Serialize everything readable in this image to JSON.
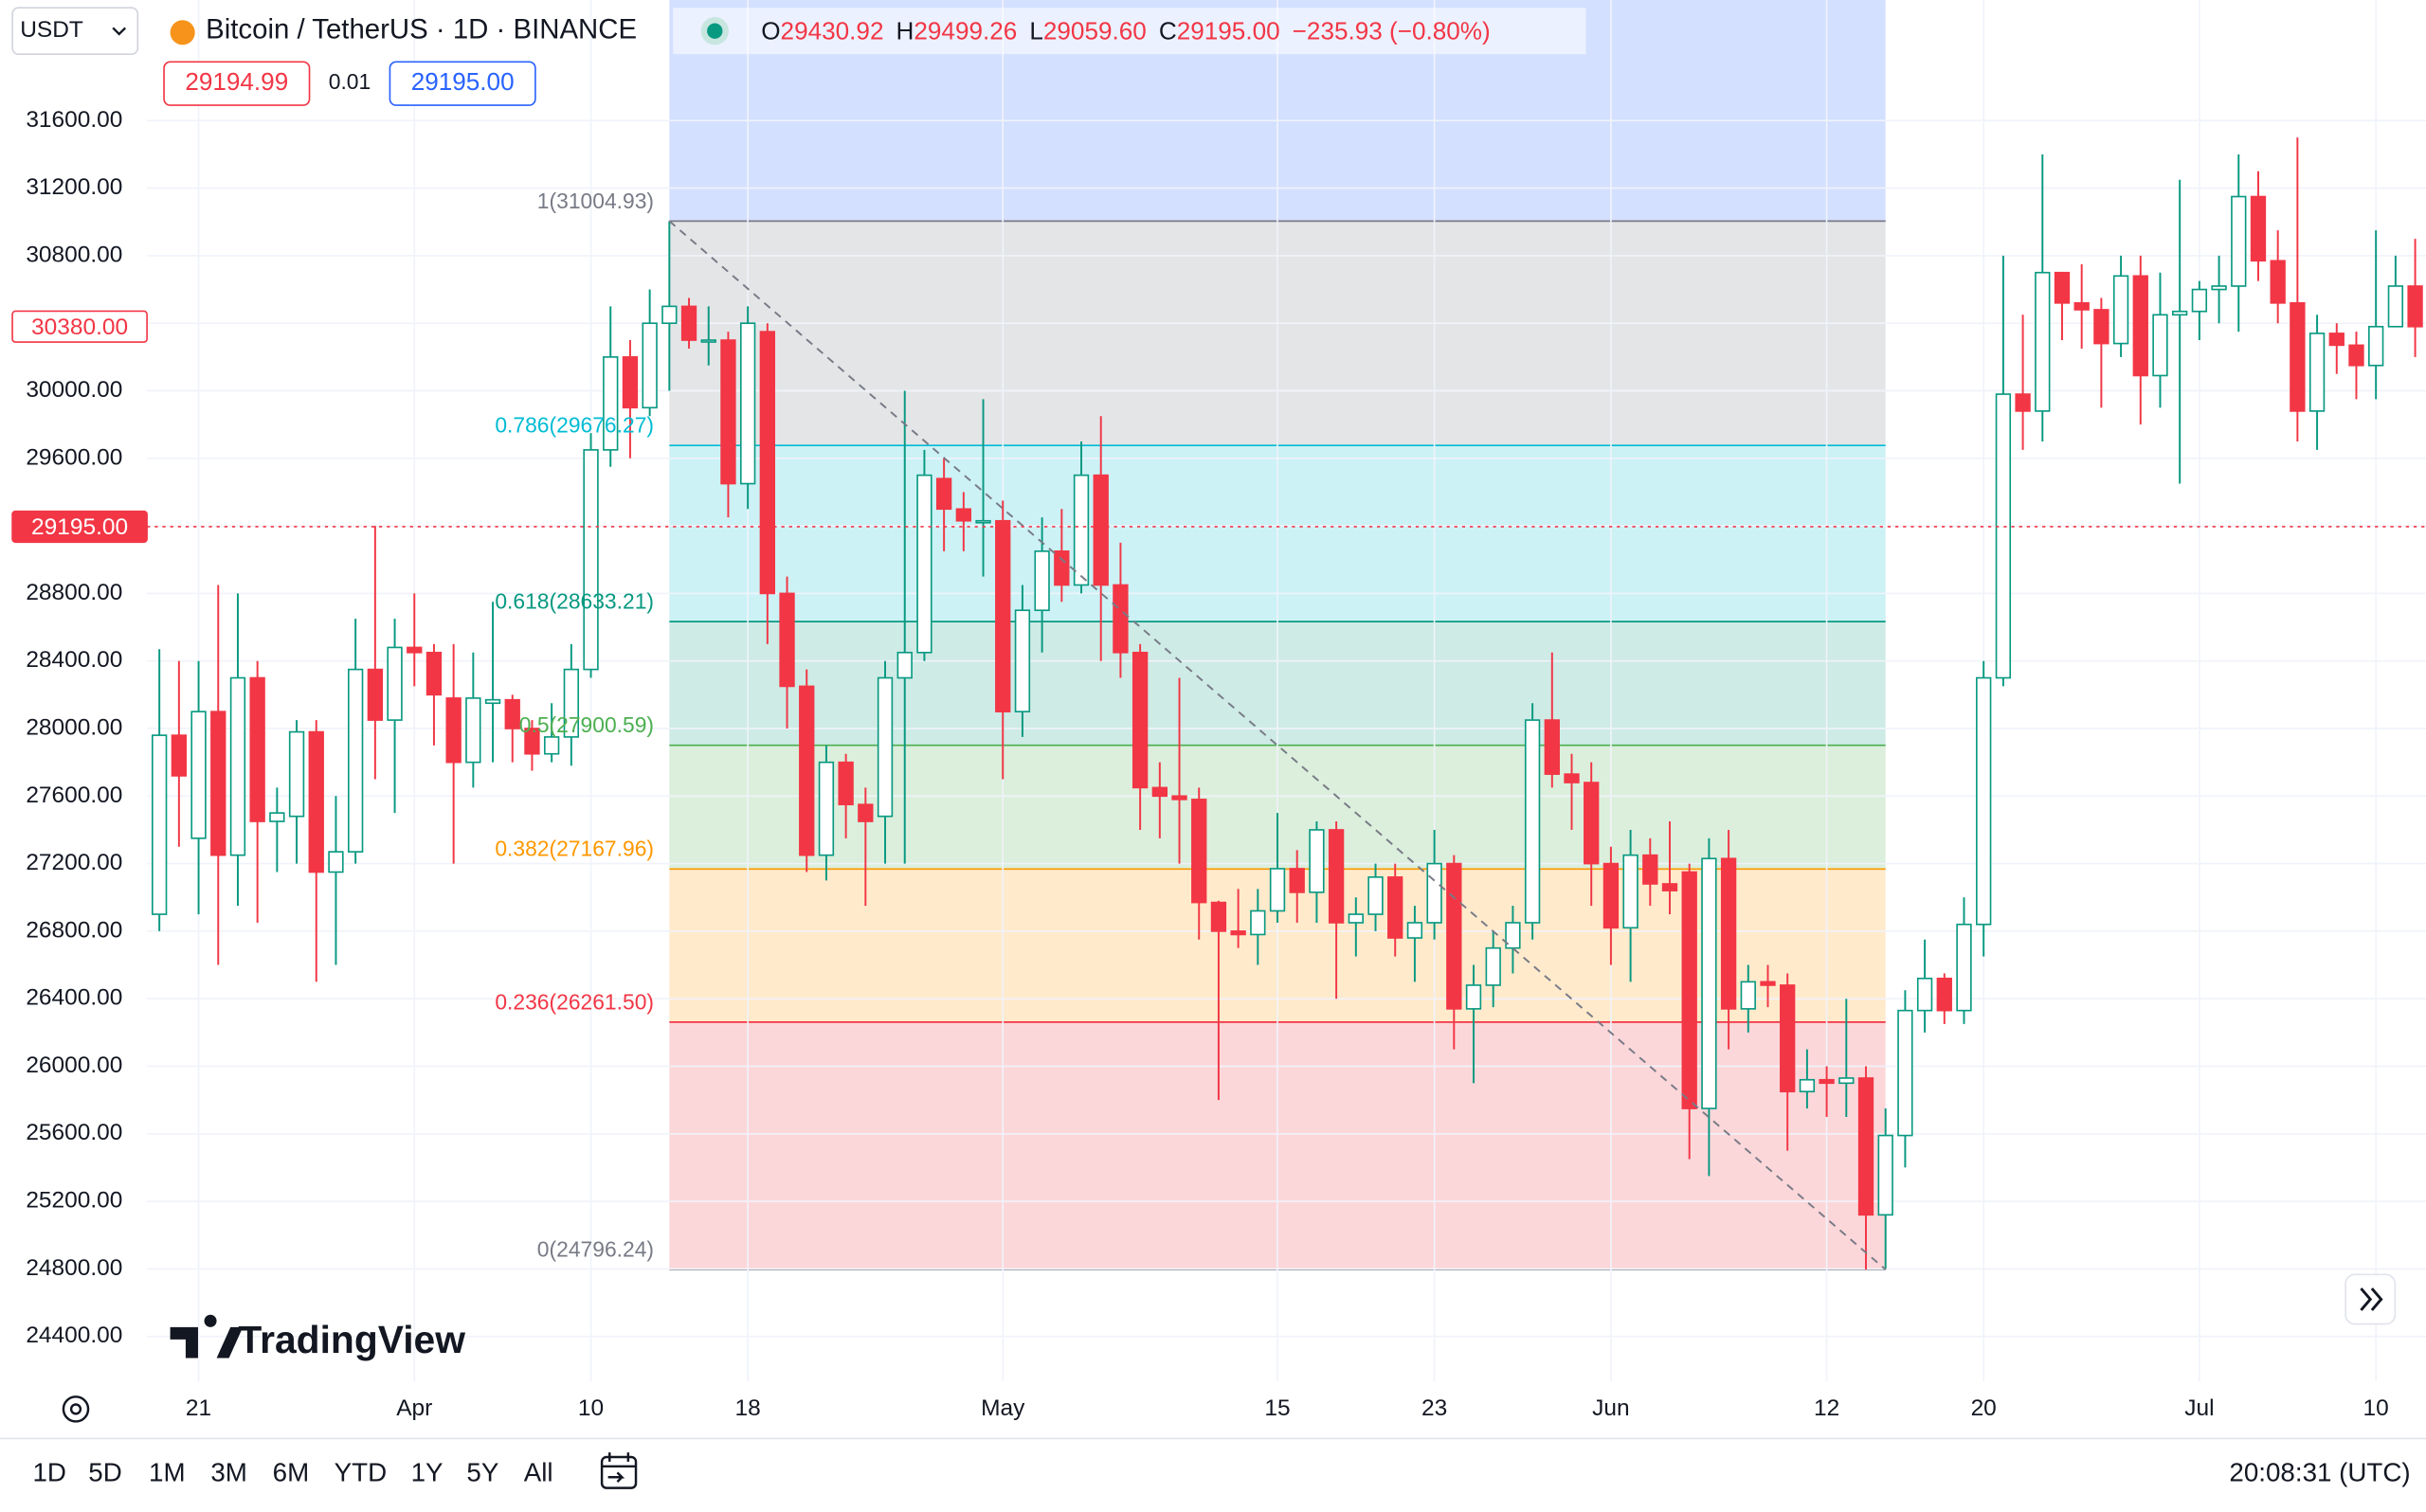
{
  "header": {
    "currency": "USDT",
    "symbol": "Bitcoin / TetherUS · 1D · BINANCE",
    "ohlc": [
      {
        "key": "O",
        "value": "29430.92"
      },
      {
        "key": "H",
        "value": "29499.26"
      },
      {
        "key": "L",
        "value": "29059.60"
      },
      {
        "key": "C",
        "value": "29195.00"
      }
    ],
    "change": "−235.93 (−0.80%)",
    "bid": "29194.99",
    "spread": "0.01",
    "ask": "29195.00"
  },
  "chart_data": {
    "type": "candlestick",
    "categories": [
      null,
      null,
      "21",
      null,
      null,
      null,
      null,
      null,
      null,
      null,
      null,
      null,
      null,
      "Apr",
      null,
      null,
      null,
      null,
      null,
      null,
      null,
      null,
      "10",
      null,
      null,
      null,
      null,
      null,
      null,
      null,
      "18",
      null,
      null,
      null,
      null,
      null,
      null,
      null,
      null,
      null,
      null,
      null,
      null,
      "May",
      null,
      null,
      null,
      null,
      null,
      null,
      null,
      null,
      null,
      null,
      null,
      null,
      null,
      "15",
      null,
      null,
      null,
      null,
      null,
      null,
      null,
      "23",
      null,
      null,
      null,
      null,
      null,
      null,
      null,
      null,
      "Jun",
      null,
      null,
      null,
      null,
      null,
      null,
      null,
      null,
      null,
      null,
      "12",
      null,
      null,
      null,
      null,
      null,
      null,
      null,
      "20",
      null,
      null,
      null,
      null,
      null,
      null,
      null,
      null,
      null,
      null,
      "Jul",
      null,
      null,
      null,
      null,
      null,
      null,
      null,
      null,
      "10",
      null,
      null
    ],
    "open": [
      26900,
      27960,
      27350,
      28100,
      27250,
      28300,
      27450,
      27480,
      27980,
      27150,
      27270,
      28350,
      28050,
      28480,
      28450,
      28180,
      27800,
      28150,
      28170,
      28000,
      27850,
      27950,
      28350,
      29650,
      30200,
      29900,
      30400,
      30500,
      30300,
      30300,
      29450,
      30350,
      28800,
      28250,
      27250,
      27800,
      27550,
      27480,
      28300,
      28450,
      29480,
      29300,
      29230,
      29230,
      28100,
      28700,
      29050,
      28850,
      29500,
      28850,
      28450,
      27650,
      27600,
      27580,
      26970,
      26800,
      26780,
      26920,
      27170,
      27030,
      27400,
      26850,
      26900,
      27120,
      26760,
      26850,
      27200,
      26340,
      26480,
      26700,
      26850,
      28050,
      27730,
      27680,
      27200,
      26820,
      27250,
      27080,
      27150,
      25750,
      27230,
      26340,
      26500,
      26480,
      25850,
      25920,
      25900,
      25930,
      25120,
      25590,
      26330,
      26520,
      26330,
      26840,
      28300,
      29980,
      29880,
      30700,
      30520,
      30480,
      30280,
      30680,
      30090,
      30450,
      30470,
      30600,
      30620,
      31150,
      30770,
      30520,
      29880,
      30340,
      30270,
      30150,
      30380,
      30620
    ],
    "high": [
      28470,
      28400,
      28400,
      28850,
      28800,
      28400,
      27650,
      28050,
      28050,
      27600,
      28650,
      29200,
      28650,
      28800,
      28500,
      28500,
      28450,
      28750,
      28200,
      28050,
      28150,
      28500,
      29750,
      30500,
      30300,
      30600,
      31004.93,
      30550,
      30500,
      30350,
      30500,
      30400,
      28900,
      28350,
      27900,
      27850,
      27650,
      28400,
      30000,
      29650,
      29600,
      29400,
      29950,
      29350,
      28850,
      29250,
      29300,
      29700,
      29850,
      29100,
      28500,
      27800,
      28300,
      27650,
      26980,
      27050,
      27050,
      27500,
      27280,
      27450,
      27450,
      27000,
      27200,
      27200,
      26950,
      27400,
      27250,
      26600,
      26800,
      26950,
      28150,
      28450,
      27850,
      27800,
      27300,
      27400,
      27350,
      27450,
      27200,
      27350,
      27400,
      26600,
      26600,
      26550,
      26100,
      26000,
      26400,
      26000,
      25750,
      26450,
      26750,
      26550,
      27000,
      28400,
      30800,
      30450,
      31400,
      30700,
      30750,
      30550,
      30800,
      30800,
      30700,
      31250,
      30650,
      30800,
      31400,
      31300,
      30950,
      31500,
      30450,
      30400,
      30350,
      30950,
      30800,
      30900
    ],
    "low": [
      26800,
      27300,
      26900,
      26600,
      26950,
      26850,
      27150,
      27200,
      26500,
      26600,
      27200,
      27700,
      27500,
      28250,
      27900,
      27200,
      27650,
      27800,
      27800,
      27750,
      27800,
      27780,
      28300,
      29550,
      29600,
      29850,
      30000,
      30250,
      30150,
      29250,
      29300,
      28500,
      28000,
      27150,
      27100,
      27350,
      26950,
      27200,
      27200,
      28400,
      29050,
      29050,
      28900,
      27700,
      27950,
      28450,
      28750,
      28800,
      28400,
      28300,
      27400,
      27350,
      27200,
      26750,
      25800,
      26700,
      26600,
      26850,
      26850,
      26850,
      26400,
      26650,
      26800,
      26650,
      26500,
      26750,
      26100,
      25900,
      26350,
      26550,
      26750,
      27650,
      27400,
      26950,
      26600,
      26500,
      26950,
      26900,
      25450,
      25350,
      26100,
      26200,
      26350,
      25500,
      25750,
      25700,
      25700,
      24796.24,
      24800,
      25400,
      26200,
      26250,
      26250,
      26650,
      28250,
      29650,
      29700,
      30300,
      30250,
      29900,
      30200,
      29800,
      29900,
      29450,
      30300,
      30400,
      30350,
      30650,
      30400,
      29700,
      29650,
      30100,
      29950,
      29950,
      30400,
      30200
    ],
    "close": [
      27960,
      27720,
      28100,
      27250,
      28300,
      27450,
      27500,
      27980,
      27150,
      27270,
      28350,
      28050,
      28480,
      28450,
      28200,
      27800,
      28180,
      28170,
      28000,
      27850,
      27950,
      28350,
      29650,
      30200,
      29900,
      30400,
      30500,
      30300,
      30300,
      29450,
      30400,
      28800,
      28250,
      27250,
      27800,
      27550,
      27450,
      28300,
      28450,
      29500,
      29300,
      29230,
      29230,
      28100,
      28700,
      29050,
      28850,
      29500,
      28850,
      28450,
      27650,
      27600,
      27580,
      26970,
      26800,
      26780,
      26920,
      27170,
      27030,
      27400,
      26850,
      26900,
      27120,
      26760,
      26850,
      27200,
      26340,
      26480,
      26700,
      26850,
      28050,
      27730,
      27680,
      27200,
      26820,
      27250,
      27080,
      27040,
      25750,
      27230,
      26340,
      26500,
      26480,
      25850,
      25920,
      25900,
      25930,
      25120,
      25590,
      26330,
      26520,
      26330,
      26840,
      28300,
      29980,
      29880,
      30700,
      30520,
      30480,
      30280,
      30680,
      30090,
      30450,
      30470,
      30600,
      30620,
      31150,
      30770,
      30520,
      29880,
      30340,
      30270,
      30150,
      30380,
      30620,
      30380
    ],
    "up_color": "#089981",
    "down_color": "#f23645",
    "ylim": [
      24162,
      32314
    ],
    "yticks": [
      {
        "value": 24400,
        "label": "24400.00"
      },
      {
        "value": 24800,
        "label": "24800.00"
      },
      {
        "value": 25200,
        "label": "25200.00"
      },
      {
        "value": 25600,
        "label": "25600.00"
      },
      {
        "value": 26000,
        "label": "26000.00"
      },
      {
        "value": 26400,
        "label": "26400.00"
      },
      {
        "value": 26800,
        "label": "26800.00"
      },
      {
        "value": 27200,
        "label": "27200.00"
      },
      {
        "value": 27600,
        "label": "27600.00"
      },
      {
        "value": 28000,
        "label": "28000.00"
      },
      {
        "value": 28400,
        "label": "28400.00"
      },
      {
        "value": 28800,
        "label": "28800.00"
      },
      {
        "value": 29200,
        "label": "29200.00"
      },
      {
        "value": 29600,
        "label": "29600.00"
      },
      {
        "value": 30000,
        "label": "30000.00"
      },
      {
        "value": 30400,
        "label": "30400.00"
      },
      {
        "value": 30800,
        "label": "30800.00"
      },
      {
        "value": 31200,
        "label": "31200.00"
      },
      {
        "value": 31600,
        "label": "31600.00"
      }
    ],
    "grid": true,
    "price_markers": [
      {
        "value": 30380,
        "label": "30380.00",
        "style": "outline",
        "color": "#f23645"
      },
      {
        "value": 29195,
        "label": "29195.00",
        "style": "filled",
        "color": "#f23645"
      }
    ],
    "fib_retracement": {
      "start_index": 26,
      "end_index": 88,
      "extend_color": "#2962ff",
      "levels": [
        {
          "value": 31004.93,
          "label": "1(31004.93)",
          "color": "#787b86"
        },
        {
          "value": 29676.27,
          "label": "0.786(29676.27)",
          "color": "#00bcd4"
        },
        {
          "value": 28633.21,
          "label": "0.618(28633.21)",
          "color": "#089981"
        },
        {
          "value": 27900.59,
          "label": "0.5(27900.59)",
          "color": "#4caf50"
        },
        {
          "value": 27167.96,
          "label": "0.382(27167.96)",
          "color": "#ff9800"
        },
        {
          "value": 26261.5,
          "label": "0.236(26261.50)",
          "color": "#f23645"
        },
        {
          "value": 24796.24,
          "label": "0(24796.24)",
          "color": "#787b86"
        }
      ]
    }
  },
  "logo": "TradingView",
  "timeframes": [
    "1D",
    "5D",
    "1M",
    "3M",
    "6M",
    "YTD",
    "1Y",
    "5Y",
    "All"
  ],
  "clock": "20:08:31 (UTC)"
}
